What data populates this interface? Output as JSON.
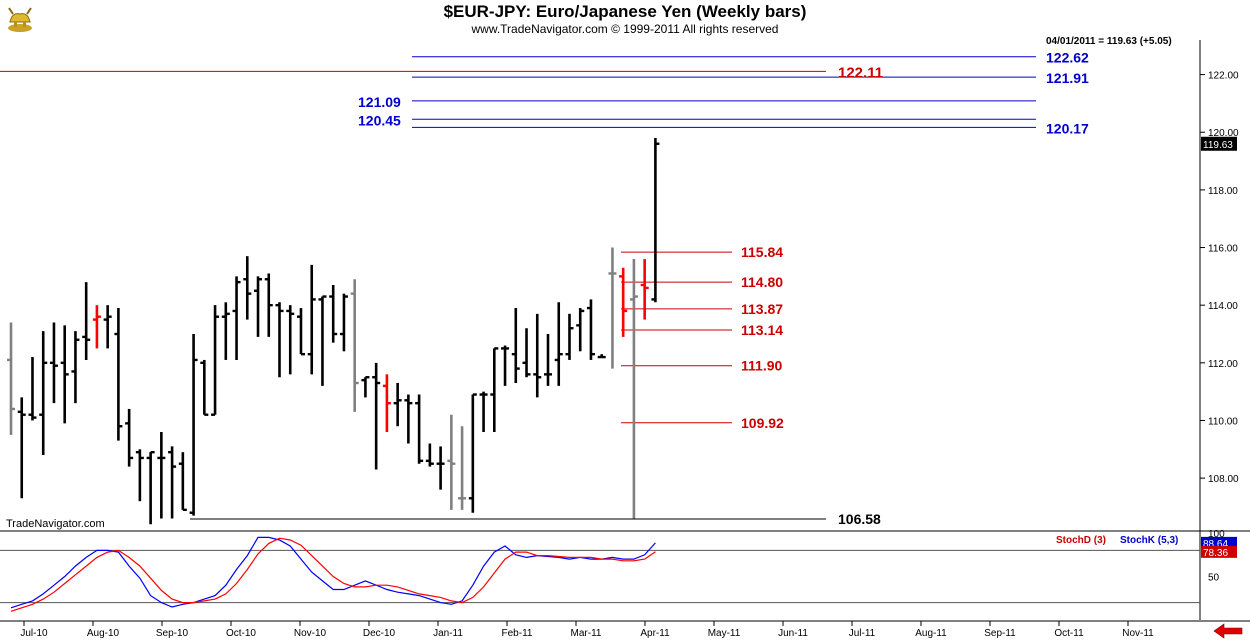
{
  "header": {
    "title": "$EUR-JPY:  Euro/Japanese Yen  (Weekly bars)",
    "copyright": "www.TradeNavigator.com © 1999-2011 All rights reserved",
    "last_info": "04/01/2011 = 119.63 (+5.05)",
    "watermark": "TradeNavigator.com",
    "logo_icon": "gold-bull-icon"
  },
  "colors": {
    "up_bar": "#000000",
    "down_bar": "#ff0000",
    "neutral_bar": "#808080",
    "fib_blue": "#0000cc",
    "fib_red": "#cc0000",
    "stoch_d": "#ff0000",
    "stoch_k": "#0000ff"
  },
  "chart_data": [
    {
      "type": "bar",
      "subtype": "ohlc",
      "y_range": [
        106.2,
        123.2
      ],
      "y_ticks": [
        108,
        110,
        112,
        114,
        116,
        118,
        120,
        122
      ],
      "y_tick_labels": [
        "108.00",
        "110.00",
        "112.00",
        "114.00",
        "116.00",
        "118.00",
        "120.00",
        "122.00"
      ],
      "last_price_label": "119.63",
      "x_month_labels": [
        "Jul-10",
        "Aug-10",
        "Sep-10",
        "Oct-10",
        "Nov-10",
        "Dec-10",
        "Jan-11",
        "Feb-11",
        "Mar-11",
        "Apr-11",
        "May-11",
        "Jun-11",
        "Jul-11",
        "Aug-11",
        "Sep-11",
        "Oct-11",
        "Nov-11"
      ],
      "bars": [
        {
          "o": 112.1,
          "h": 113.4,
          "l": 109.5,
          "c": 110.4,
          "col": "neutral"
        },
        {
          "o": 110.3,
          "h": 110.8,
          "l": 107.3,
          "c": 110.2,
          "col": "up"
        },
        {
          "o": 110.2,
          "h": 112.2,
          "l": 110.0,
          "c": 110.1,
          "col": "up"
        },
        {
          "o": 110.2,
          "h": 113.1,
          "l": 108.8,
          "c": 112.0,
          "col": "up"
        },
        {
          "o": 112.0,
          "h": 113.4,
          "l": 110.6,
          "c": 111.9,
          "col": "up"
        },
        {
          "o": 112.0,
          "h": 113.3,
          "l": 109.9,
          "c": 111.6,
          "col": "up"
        },
        {
          "o": 111.7,
          "h": 113.1,
          "l": 110.6,
          "c": 112.8,
          "col": "up"
        },
        {
          "o": 112.9,
          "h": 114.8,
          "l": 112.1,
          "c": 112.8,
          "col": "up"
        },
        {
          "o": 113.5,
          "h": 114.0,
          "l": 112.5,
          "c": 113.6,
          "col": "down"
        },
        {
          "o": 113.5,
          "h": 114.0,
          "l": 112.5,
          "c": 113.6,
          "col": "up"
        },
        {
          "o": 113.0,
          "h": 113.9,
          "l": 109.3,
          "c": 109.8,
          "col": "up"
        },
        {
          "o": 109.9,
          "h": 110.4,
          "l": 108.4,
          "c": 108.7,
          "col": "up"
        },
        {
          "o": 108.9,
          "h": 109.0,
          "l": 107.2,
          "c": 108.7,
          "col": "up"
        },
        {
          "o": 108.7,
          "h": 108.9,
          "l": 106.4,
          "c": 108.9,
          "col": "up"
        },
        {
          "o": 108.7,
          "h": 109.6,
          "l": 106.6,
          "c": 108.7,
          "col": "up"
        },
        {
          "o": 108.9,
          "h": 109.1,
          "l": 106.6,
          "c": 108.4,
          "col": "up"
        },
        {
          "o": 108.5,
          "h": 108.9,
          "l": 106.9,
          "c": 106.9,
          "col": "up"
        },
        {
          "o": 106.8,
          "h": 113.0,
          "l": 106.7,
          "c": 112.1,
          "col": "up"
        },
        {
          "o": 112.0,
          "h": 112.1,
          "l": 110.2,
          "c": 110.2,
          "col": "up"
        },
        {
          "o": 110.2,
          "h": 114.0,
          "l": 110.2,
          "c": 113.6,
          "col": "up"
        },
        {
          "o": 113.6,
          "h": 114.1,
          "l": 112.1,
          "c": 113.7,
          "col": "up"
        },
        {
          "o": 113.8,
          "h": 115.0,
          "l": 112.1,
          "c": 114.8,
          "col": "up"
        },
        {
          "o": 114.9,
          "h": 115.7,
          "l": 113.5,
          "c": 114.4,
          "col": "up"
        },
        {
          "o": 114.5,
          "h": 115.0,
          "l": 112.9,
          "c": 114.9,
          "col": "up"
        },
        {
          "o": 114.9,
          "h": 115.1,
          "l": 112.9,
          "c": 114.0,
          "col": "up"
        },
        {
          "o": 114.0,
          "h": 114.1,
          "l": 111.5,
          "c": 113.8,
          "col": "up"
        },
        {
          "o": 113.8,
          "h": 114.0,
          "l": 111.6,
          "c": 113.7,
          "col": "up"
        },
        {
          "o": 113.6,
          "h": 113.9,
          "l": 112.3,
          "c": 112.3,
          "col": "up"
        },
        {
          "o": 112.3,
          "h": 115.4,
          "l": 111.6,
          "c": 114.2,
          "col": "up"
        },
        {
          "o": 114.2,
          "h": 114.3,
          "l": 111.2,
          "c": 114.3,
          "col": "up"
        },
        {
          "o": 114.3,
          "h": 114.7,
          "l": 112.7,
          "c": 113.0,
          "col": "up"
        },
        {
          "o": 113.0,
          "h": 114.4,
          "l": 112.4,
          "c": 114.3,
          "col": "up"
        },
        {
          "o": 114.4,
          "h": 114.9,
          "l": 110.3,
          "c": 111.3,
          "col": "neutral"
        },
        {
          "o": 111.4,
          "h": 111.5,
          "l": 110.8,
          "c": 111.5,
          "col": "up"
        },
        {
          "o": 111.5,
          "h": 112.0,
          "l": 108.3,
          "c": 111.3,
          "col": "up"
        },
        {
          "o": 111.2,
          "h": 111.6,
          "l": 109.6,
          "c": 110.6,
          "col": "down"
        },
        {
          "o": 110.6,
          "h": 111.3,
          "l": 109.8,
          "c": 110.7,
          "col": "up"
        },
        {
          "o": 110.7,
          "h": 110.9,
          "l": 109.2,
          "c": 110.6,
          "col": "up"
        },
        {
          "o": 110.6,
          "h": 110.9,
          "l": 108.5,
          "c": 108.6,
          "col": "up"
        },
        {
          "o": 108.6,
          "h": 109.2,
          "l": 108.4,
          "c": 108.5,
          "col": "up"
        },
        {
          "o": 108.5,
          "h": 109.1,
          "l": 107.6,
          "c": 108.5,
          "col": "up"
        },
        {
          "o": 108.6,
          "h": 110.2,
          "l": 106.9,
          "c": 108.5,
          "col": "neutral"
        },
        {
          "o": 107.3,
          "h": 109.8,
          "l": 106.9,
          "c": 107.3,
          "col": "neutral"
        },
        {
          "o": 107.3,
          "h": 110.9,
          "l": 106.8,
          "c": 110.9,
          "col": "up"
        },
        {
          "o": 110.9,
          "h": 111.0,
          "l": 109.6,
          "c": 110.9,
          "col": "up"
        },
        {
          "o": 110.9,
          "h": 112.5,
          "l": 109.6,
          "c": 112.5,
          "col": "up"
        },
        {
          "o": 112.5,
          "h": 112.6,
          "l": 111.2,
          "c": 112.5,
          "col": "up"
        },
        {
          "o": 112.3,
          "h": 113.9,
          "l": 111.3,
          "c": 111.8,
          "col": "up"
        },
        {
          "o": 112.0,
          "h": 113.2,
          "l": 111.5,
          "c": 111.6,
          "col": "up"
        },
        {
          "o": 111.6,
          "h": 113.7,
          "l": 110.8,
          "c": 111.5,
          "col": "up"
        },
        {
          "o": 111.6,
          "h": 113.0,
          "l": 111.2,
          "c": 111.6,
          "col": "up"
        },
        {
          "o": 112.1,
          "h": 114.1,
          "l": 111.2,
          "c": 112.3,
          "col": "up"
        },
        {
          "o": 112.3,
          "h": 113.7,
          "l": 112.1,
          "c": 113.2,
          "col": "up"
        },
        {
          "o": 113.3,
          "h": 113.9,
          "l": 112.4,
          "c": 113.8,
          "col": "up"
        },
        {
          "o": 113.9,
          "h": 114.2,
          "l": 112.1,
          "c": 112.3,
          "col": "up"
        },
        {
          "o": 112.2,
          "h": 112.3,
          "l": 112.2,
          "c": 112.2,
          "col": "up"
        },
        {
          "o": 115.1,
          "h": 116.0,
          "l": 111.8,
          "c": 115.1,
          "col": "neutral"
        },
        {
          "o": 115.0,
          "h": 115.3,
          "l": 112.9,
          "c": 113.8,
          "col": "down"
        },
        {
          "o": 114.2,
          "h": 115.6,
          "l": 106.6,
          "c": 114.3,
          "col": "neutral"
        },
        {
          "o": 114.7,
          "h": 115.6,
          "l": 113.5,
          "c": 114.6,
          "col": "down"
        },
        {
          "o": 114.2,
          "h": 119.8,
          "l": 114.1,
          "c": 119.6,
          "col": "up"
        }
      ],
      "levels_upper": [
        {
          "value": 122.62,
          "label": "122.62",
          "color": "blue"
        },
        {
          "value": 121.91,
          "label": "121.91",
          "color": "blue"
        },
        {
          "value": 121.09,
          "label": "121.09",
          "color": "blue"
        },
        {
          "value": 120.45,
          "label": "120.45",
          "color": "blue"
        },
        {
          "value": 120.17,
          "label": "120.17",
          "color": "blue"
        }
      ],
      "long_red_line": {
        "value": 122.11,
        "label": "122.11"
      },
      "levels_lower": [
        {
          "value": 115.84,
          "label": "115.84"
        },
        {
          "value": 114.8,
          "label": "114.80"
        },
        {
          "value": 113.87,
          "label": "113.87"
        },
        {
          "value": 113.14,
          "label": "113.14"
        },
        {
          "value": 111.9,
          "label": "111.90"
        },
        {
          "value": 109.92,
          "label": "109.92"
        }
      ],
      "support_line": {
        "value": 106.58,
        "label": "106.58"
      }
    },
    {
      "type": "line",
      "y_range": [
        0,
        100
      ],
      "y_ticks": [
        50,
        100
      ],
      "y_tick_labels": [
        "50",
        "100"
      ],
      "reference_lines": [
        20,
        80
      ],
      "legend": [
        "StochD (3)",
        "StochK (5,3)"
      ],
      "last_values": {
        "k": "88.64",
        "d": "78.36"
      },
      "series": [
        {
          "name": "StochK (5,3)",
          "color_key": "stoch_k",
          "values": [
            14,
            18,
            22,
            30,
            40,
            50,
            62,
            72,
            80,
            80,
            78,
            62,
            48,
            28,
            20,
            15,
            18,
            20,
            24,
            28,
            40,
            58,
            74,
            95,
            95,
            92,
            85,
            70,
            55,
            45,
            35,
            35,
            40,
            45,
            40,
            35,
            32,
            30,
            28,
            24,
            20,
            18,
            22,
            40,
            62,
            78,
            85,
            75,
            72,
            74,
            73,
            72,
            70,
            72,
            70,
            70,
            72,
            70,
            70,
            75,
            88.64
          ]
        },
        {
          "name": "StochD (3)",
          "color_key": "stoch_d",
          "values": [
            10,
            14,
            18,
            24,
            32,
            42,
            52,
            62,
            72,
            78,
            80,
            72,
            62,
            48,
            34,
            24,
            20,
            20,
            22,
            24,
            30,
            42,
            58,
            76,
            88,
            94,
            92,
            86,
            74,
            62,
            50,
            42,
            38,
            38,
            40,
            40,
            38,
            34,
            30,
            28,
            26,
            22,
            20,
            26,
            38,
            54,
            70,
            78,
            78,
            74,
            74,
            73,
            72,
            72,
            72,
            70,
            70,
            68,
            68,
            70,
            78.36
          ]
        }
      ]
    }
  ]
}
